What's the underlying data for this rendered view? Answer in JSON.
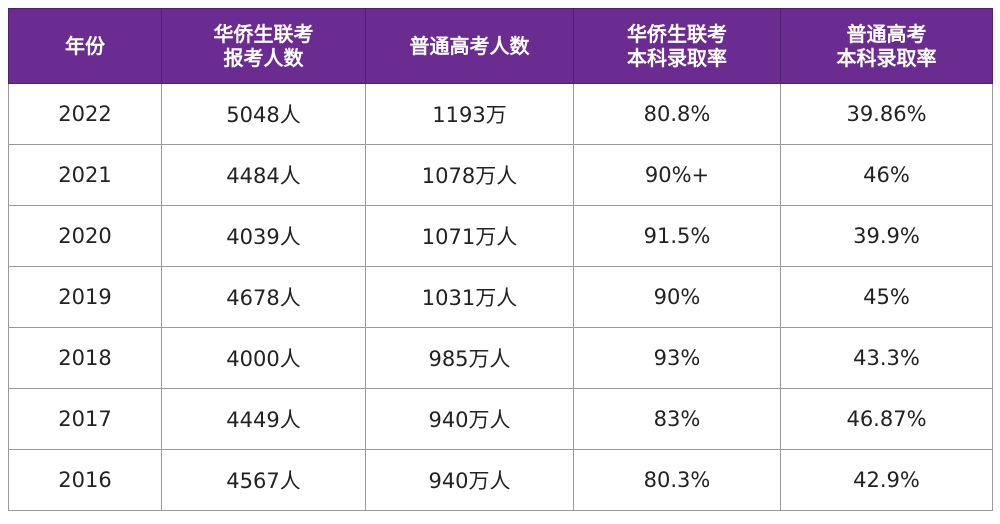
{
  "table": {
    "headers": [
      {
        "line1": "年份",
        "line2": ""
      },
      {
        "line1": "华侨生联考",
        "line2": "报考人数"
      },
      {
        "line1": "普通高考人数",
        "line2": ""
      },
      {
        "line1": "华侨生联考",
        "line2": "本科录取率"
      },
      {
        "line1": "普通高考",
        "line2": "本科录取率"
      }
    ],
    "rows": [
      [
        "2022",
        "5048人",
        "1193万",
        "80.8%",
        "39.86%"
      ],
      [
        "2021",
        "4484人",
        "1078万人",
        "90%+",
        "46%"
      ],
      [
        "2020",
        "4039人",
        "1071万人",
        "91.5%",
        "39.9%"
      ],
      [
        "2019",
        "4678人",
        "1031万人",
        "90%",
        "45%"
      ],
      [
        "2018",
        "4000人",
        "985万人",
        "93%",
        "43.3%"
      ],
      [
        "2017",
        "4449人",
        "940万人",
        "83%",
        "46.87%"
      ],
      [
        "2016",
        "4567人",
        "940万人",
        "80.3%",
        "42.9%"
      ]
    ]
  },
  "colors": {
    "header_bg": "#6b2c91",
    "header_text": "#ffffff",
    "border": "#9a9a9a"
  }
}
